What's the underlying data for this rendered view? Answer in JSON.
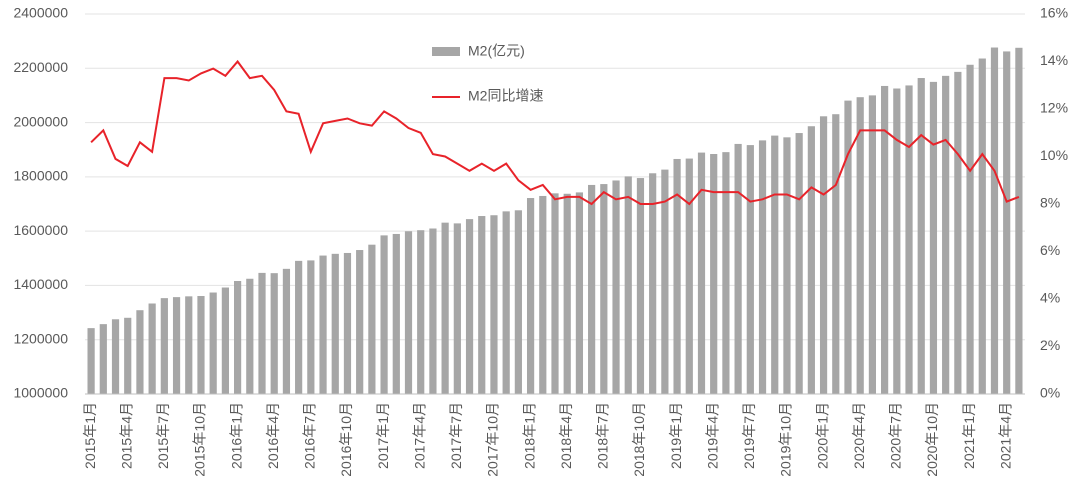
{
  "chart_data": {
    "type": "bar_line",
    "categories": [
      "2015年1月",
      null,
      null,
      "2015年4月",
      null,
      null,
      "2015年7月",
      null,
      null,
      "2015年10月",
      null,
      null,
      "2016年1月",
      null,
      null,
      "2016年4月",
      null,
      null,
      "2016年7月",
      null,
      null,
      "2016年10月",
      null,
      null,
      "2017年1月",
      null,
      null,
      "2017年4月",
      null,
      null,
      "2017年7月",
      null,
      null,
      "2017年10月",
      null,
      null,
      "2018年1月",
      null,
      null,
      "2018年4月",
      null,
      null,
      "2018年7月",
      null,
      null,
      "2018年10月",
      null,
      null,
      "2019年1月",
      null,
      null,
      "2019年4月",
      null,
      null,
      "2019年7月",
      null,
      null,
      "2019年10月",
      null,
      null,
      "2020年1月",
      null,
      null,
      "2020年4月",
      null,
      null,
      "2020年7月",
      null,
      null,
      "2020年10月",
      null,
      null,
      "2021年1月",
      null,
      null,
      "2021年4月",
      null
    ],
    "series": [
      {
        "name": "M2(亿元)",
        "type": "bar",
        "color": "#a6a6a6",
        "values": [
          1242700,
          1257400,
          1275300,
          1280800,
          1308700,
          1333400,
          1353200,
          1356900,
          1359800,
          1361000,
          1373900,
          1392300,
          1416300,
          1424600,
          1446200,
          1445200,
          1461100,
          1490500,
          1492200,
          1510000,
          1516400,
          1519600,
          1530400,
          1550100,
          1584400,
          1589600,
          1599600,
          1603500,
          1609700,
          1631300,
          1628600,
          1644300,
          1655700,
          1658600,
          1672900,
          1676800,
          1722000,
          1729600,
          1739300,
          1737700,
          1742700,
          1770200,
          1773400,
          1786700,
          1801700,
          1795600,
          1813200,
          1826700,
          1865900,
          1867400,
          1889400,
          1884200,
          1891100,
          1921300,
          1917000,
          1934400,
          1952000,
          1945600,
          1961400,
          1986500,
          2023100,
          2030800,
          2080900,
          2093500,
          2100200,
          2134900,
          2125500,
          2136800,
          2164100,
          2149900,
          2172100,
          2186800,
          2213000,
          2236000,
          2276500,
          2262100,
          2275500
        ]
      },
      {
        "name": "M2同比增速",
        "type": "line",
        "axis": "y2",
        "color": "#e8232a",
        "values": [
          10.6,
          11.1,
          9.9,
          9.6,
          10.6,
          10.2,
          13.3,
          13.3,
          13.2,
          13.5,
          13.7,
          13.4,
          14.0,
          13.3,
          13.4,
          12.8,
          11.9,
          11.8,
          10.2,
          11.4,
          11.5,
          11.6,
          11.4,
          11.3,
          11.9,
          11.6,
          11.2,
          11.0,
          10.1,
          10.0,
          9.7,
          9.4,
          9.7,
          9.4,
          9.7,
          9.0,
          8.6,
          8.8,
          8.2,
          8.3,
          8.3,
          8.0,
          8.5,
          8.2,
          8.3,
          8.0,
          8.0,
          8.1,
          8.4,
          8.0,
          8.6,
          8.5,
          8.5,
          8.5,
          8.1,
          8.2,
          8.4,
          8.4,
          8.2,
          8.7,
          8.4,
          8.8,
          10.1,
          11.1,
          11.1,
          11.1,
          10.7,
          10.4,
          10.9,
          10.5,
          10.7,
          10.1,
          9.4,
          10.1,
          9.4,
          8.1,
          8.3
        ]
      }
    ],
    "ylim": [
      1000000,
      2400000
    ],
    "yticks": [
      1000000,
      1200000,
      1400000,
      1600000,
      1800000,
      2000000,
      2200000,
      2400000
    ],
    "y2lim": [
      0,
      16
    ],
    "y2ticks": [
      {
        "value": 0,
        "label": "0%"
      },
      {
        "value": 2,
        "label": "2%"
      },
      {
        "value": 4,
        "label": "4%"
      },
      {
        "value": 6,
        "label": "6%"
      },
      {
        "value": 8,
        "label": "8%"
      },
      {
        "value": 10,
        "label": "10%"
      },
      {
        "value": 12,
        "label": "12%"
      },
      {
        "value": 14,
        "label": "14%"
      },
      {
        "value": 16,
        "label": "16%"
      }
    ],
    "grid": true
  }
}
